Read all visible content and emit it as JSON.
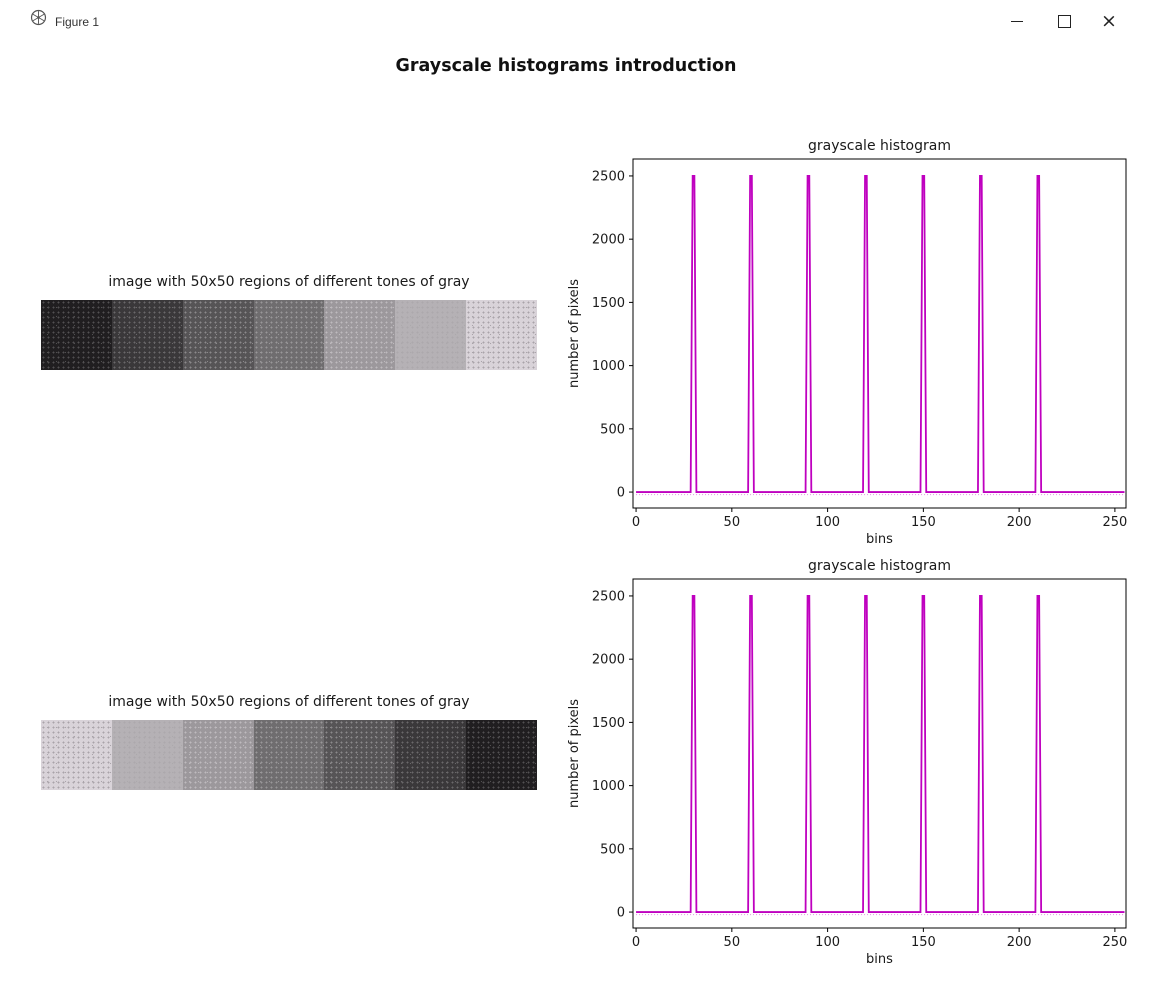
{
  "window": {
    "title": "Figure 1",
    "controls": {
      "minimize": "minimize",
      "maximize": "maximize",
      "close": "close",
      "close_glyph": "×"
    }
  },
  "figure": {
    "suptitle": "Grayscale histograms introduction"
  },
  "image_panels": [
    {
      "title": "image with 50x50 regions of different tones of gray",
      "order": "dark-to-light",
      "region_size": "50x50",
      "tones": [
        {
          "gray": 30,
          "color": "#201e20",
          "dot": "#525052"
        },
        {
          "gray": 60,
          "color": "#3a383a",
          "dot": "#6a686a"
        },
        {
          "gray": 90,
          "color": "#565456",
          "dot": "#8b898b"
        },
        {
          "gray": 120,
          "color": "#6f6d6f",
          "dot": "#999799"
        },
        {
          "gray": 150,
          "color": "#9c989c",
          "dot": "#bebabe"
        },
        {
          "gray": 180,
          "color": "#b5b1b5",
          "dot": "#aca8ac"
        },
        {
          "gray": 210,
          "color": "#d9d3d9",
          "dot": "#a9a3a9"
        }
      ]
    },
    {
      "title": "image with 50x50 regions of different tones of gray",
      "order": "light-to-dark",
      "region_size": "50x50",
      "tones": [
        {
          "gray": 210,
          "color": "#d9d3d9",
          "dot": "#a9a3a9"
        },
        {
          "gray": 180,
          "color": "#b5b1b5",
          "dot": "#aca8ac"
        },
        {
          "gray": 150,
          "color": "#9c989c",
          "dot": "#bebabe"
        },
        {
          "gray": 120,
          "color": "#6f6d6f",
          "dot": "#999799"
        },
        {
          "gray": 90,
          "color": "#565456",
          "dot": "#8b898b"
        },
        {
          "gray": 60,
          "color": "#3a383a",
          "dot": "#6a686a"
        },
        {
          "gray": 30,
          "color": "#201e20",
          "dot": "#525052"
        }
      ]
    }
  ],
  "chart_data": [
    {
      "type": "line",
      "title": "grayscale histogram",
      "xlabel": "bins",
      "ylabel": "number of pixels",
      "x_ticks": [
        0,
        50,
        100,
        150,
        200,
        250
      ],
      "y_ticks": [
        0,
        500,
        1000,
        1500,
        2000,
        2500
      ],
      "x_range": [
        0,
        255
      ],
      "xlim": [
        -1.6,
        255.8
      ],
      "ylim": [
        -126,
        2634
      ],
      "line_color": "#bf00bf",
      "baseline_value": 0,
      "spike_positions": [
        30,
        60,
        90,
        120,
        150,
        180,
        210
      ],
      "spike_height": 2500,
      "grid": false,
      "legend": false
    },
    {
      "type": "line",
      "title": "grayscale histogram",
      "xlabel": "bins",
      "ylabel": "number of pixels",
      "x_ticks": [
        0,
        50,
        100,
        150,
        200,
        250
      ],
      "y_ticks": [
        0,
        500,
        1000,
        1500,
        2000,
        2500
      ],
      "x_range": [
        0,
        255
      ],
      "xlim": [
        -1.6,
        255.8
      ],
      "ylim": [
        -126,
        2634
      ],
      "line_color": "#bf00bf",
      "baseline_value": 0,
      "spike_positions": [
        30,
        60,
        90,
        120,
        150,
        180,
        210
      ],
      "spike_height": 2500,
      "grid": false,
      "legend": false
    }
  ]
}
